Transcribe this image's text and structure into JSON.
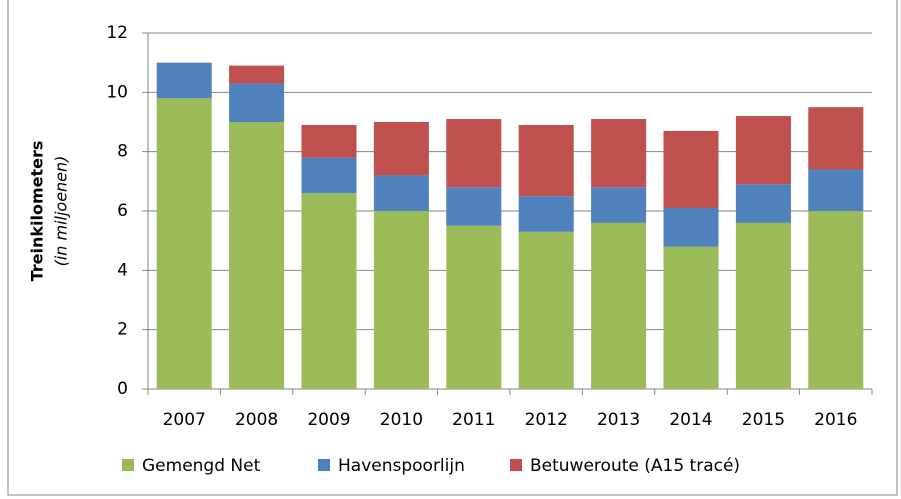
{
  "chart_data": {
    "type": "stacked_bar",
    "y_label": "Treinkilometers",
    "y_label_note": "(in miljoenen)",
    "categories": [
      "2007",
      "2008",
      "2009",
      "2010",
      "2011",
      "2012",
      "2013",
      "2014",
      "2015",
      "2016"
    ],
    "series": [
      {
        "name": "Gemengd Net",
        "color": "#9bbb59",
        "values": [
          9.8,
          9.0,
          6.6,
          6.0,
          5.5,
          5.3,
          5.6,
          4.8,
          5.6,
          6.0
        ]
      },
      {
        "name": "Havenspoorlijn",
        "color": "#4f81bd",
        "values": [
          1.2,
          1.3,
          1.2,
          1.2,
          1.3,
          1.2,
          1.2,
          1.3,
          1.3,
          1.4
        ]
      },
      {
        "name": "Betuweroute (A15 tracé)",
        "color": "#c0504d",
        "values": [
          0,
          0.6,
          1.1,
          1.8,
          2.3,
          2.4,
          2.3,
          2.6,
          2.3,
          2.1
        ]
      }
    ],
    "ylim": [
      0,
      12
    ],
    "yticks": [
      0,
      2,
      4,
      6,
      8,
      10,
      12
    ],
    "grid": true
  }
}
